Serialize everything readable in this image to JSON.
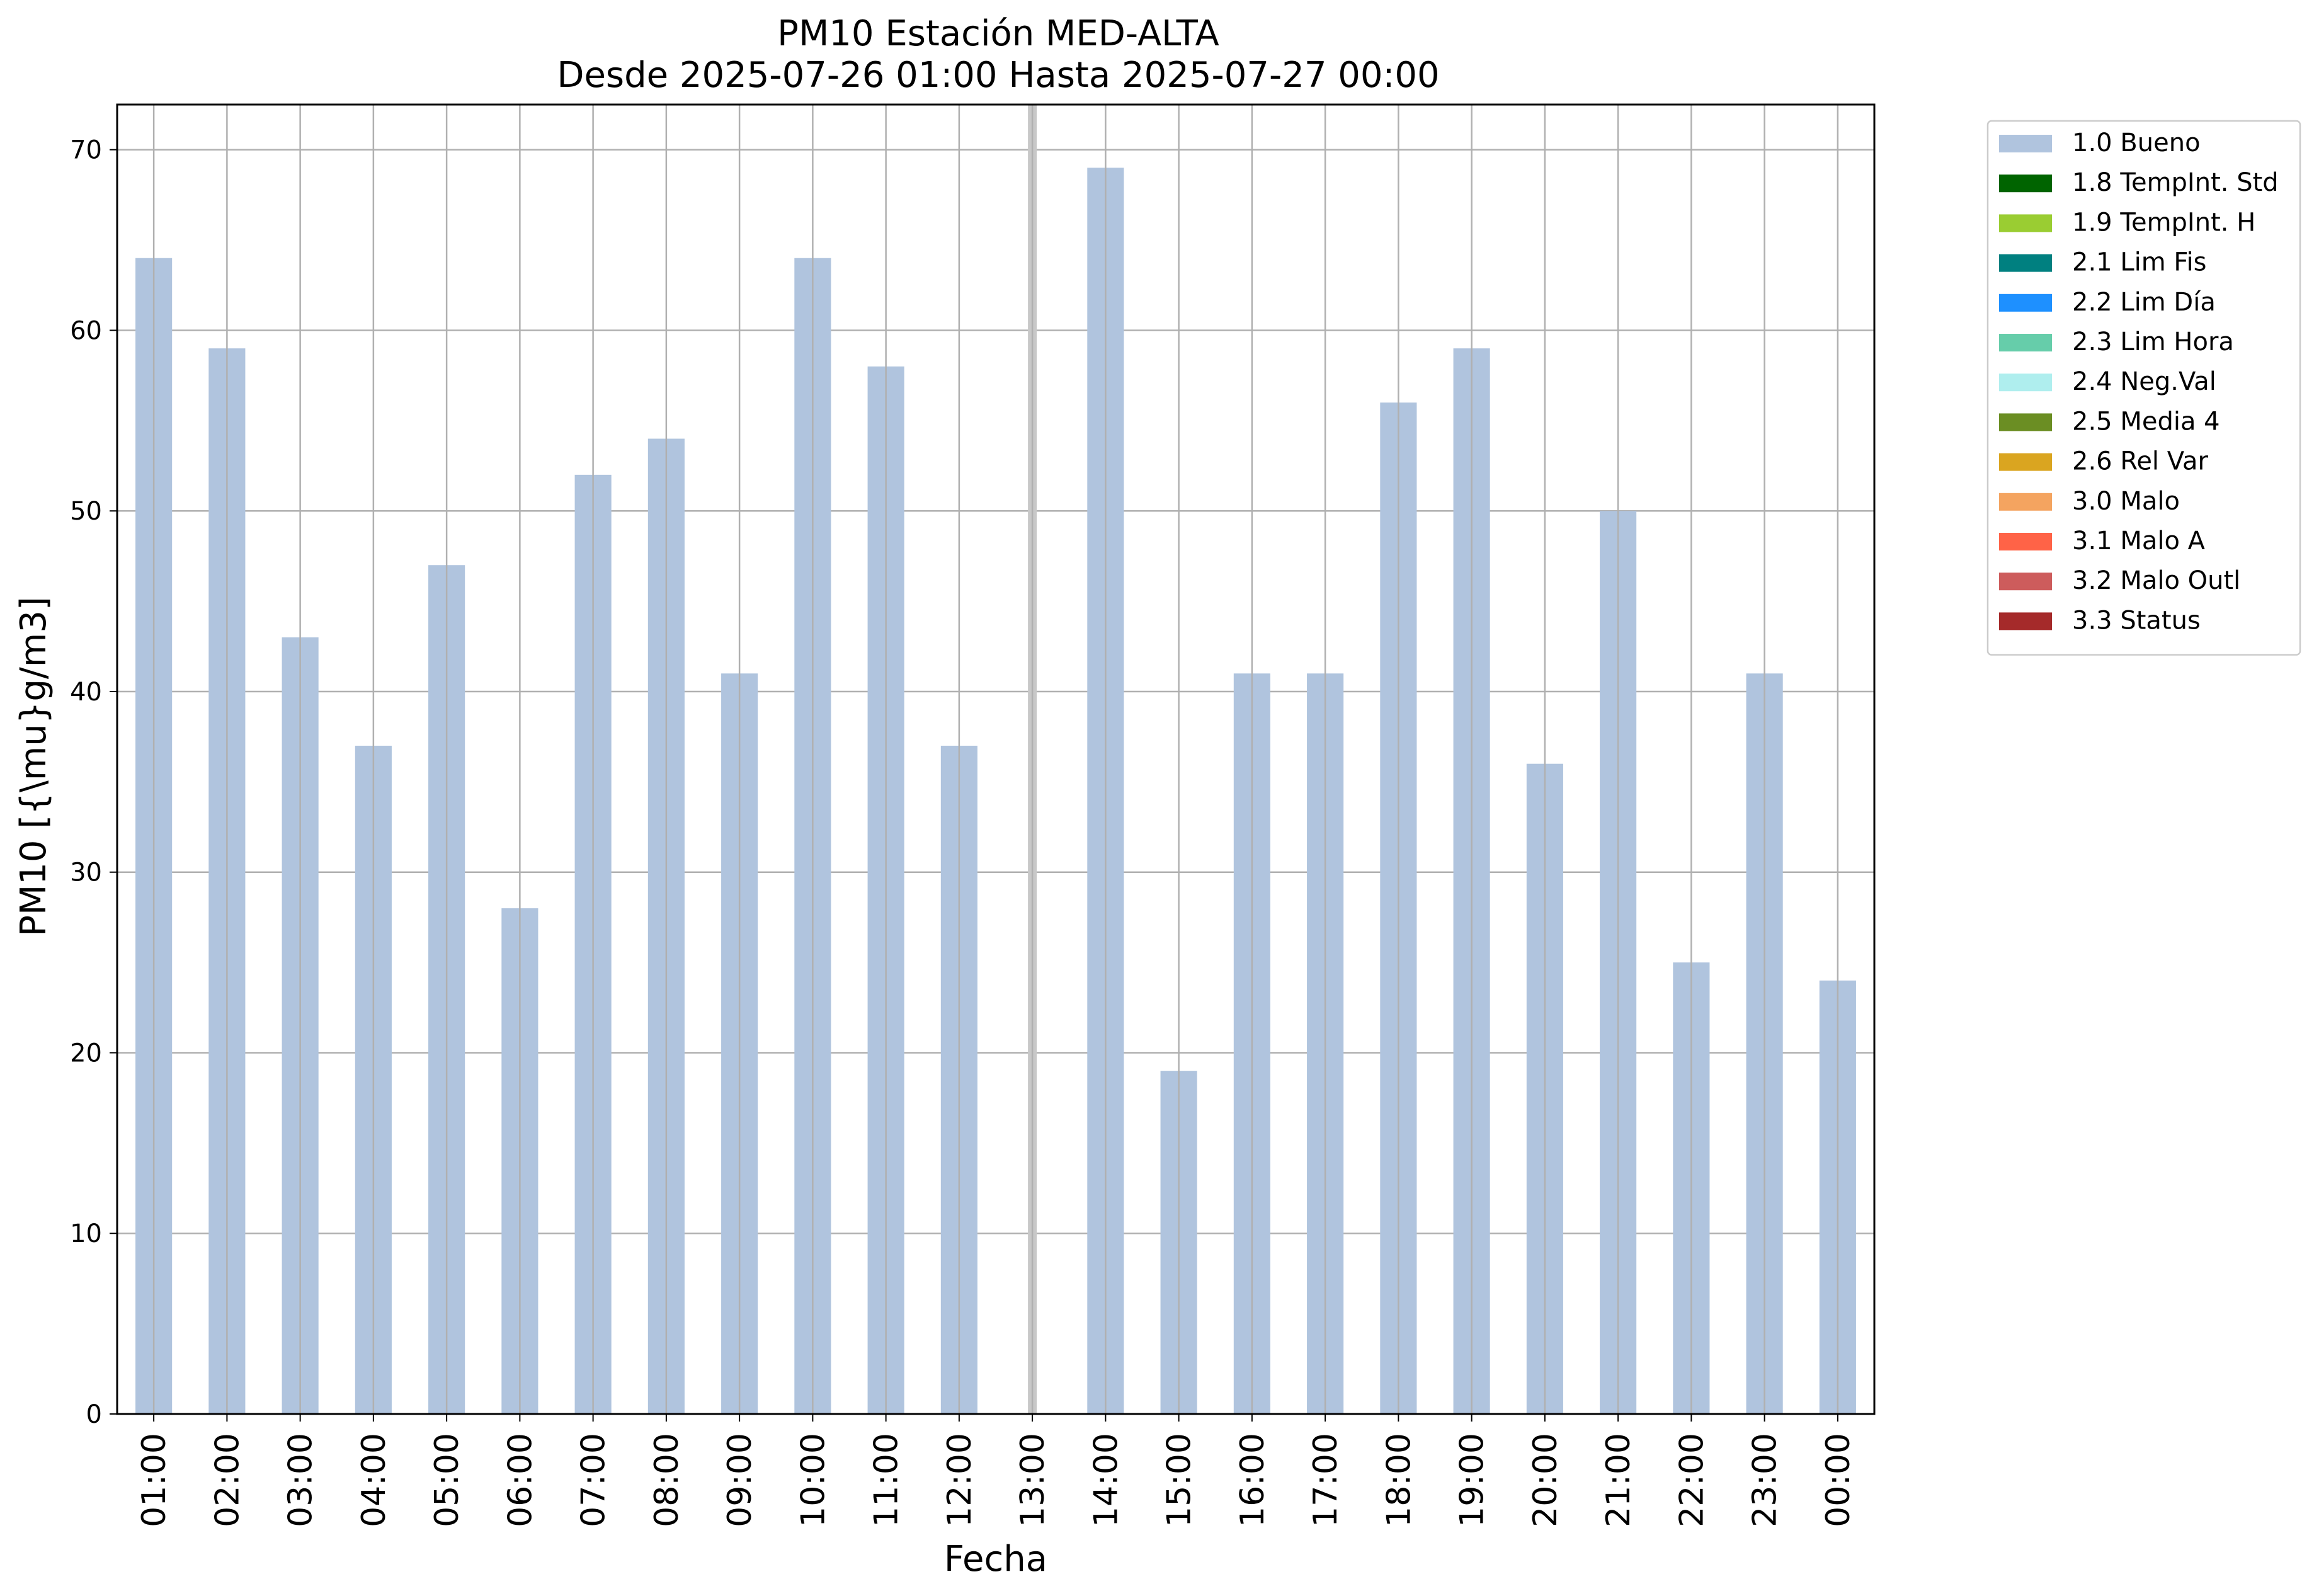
{
  "chart_data": {
    "type": "bar",
    "title": "PM10 Estación MED-ALTA",
    "subtitle": "Desde 2025-07-26 01:00 Hasta 2025-07-27 00:00",
    "xlabel": "Fecha",
    "ylabel": "PM10 [{\\mu}g/m3]",
    "ylim": [
      0,
      72.5
    ],
    "yticks": [
      0,
      10,
      20,
      30,
      40,
      50,
      60,
      70
    ],
    "grid": true,
    "legend_position": "outside-top-right",
    "categories": [
      "01:00",
      "02:00",
      "03:00",
      "04:00",
      "05:00",
      "06:00",
      "07:00",
      "08:00",
      "09:00",
      "10:00",
      "11:00",
      "12:00",
      "13:00",
      "14:00",
      "15:00",
      "16:00",
      "17:00",
      "18:00",
      "19:00",
      "20:00",
      "21:00",
      "22:00",
      "23:00",
      "00:00"
    ],
    "series": [
      {
        "name": "1.0 Bueno",
        "color": "#b0c4de",
        "values": [
          64,
          59,
          43,
          37,
          47,
          28,
          52,
          54,
          41,
          64,
          58,
          37,
          null,
          69,
          19,
          41,
          41,
          56,
          59,
          36,
          50,
          25,
          41,
          24
        ]
      }
    ],
    "missing_marker": {
      "category": "13:00",
      "color": "#c8c8c8"
    },
    "legend": [
      {
        "label": "1.0 Bueno",
        "color": "#b0c4de"
      },
      {
        "label": "1.8 TempInt. Std",
        "color": "#006400"
      },
      {
        "label": "1.9 TempInt. H",
        "color": "#9acd32"
      },
      {
        "label": "2.1 Lim Fis",
        "color": "#008080"
      },
      {
        "label": "2.2 Lim Día",
        "color": "#1e90ff"
      },
      {
        "label": "2.3 Lim Hora",
        "color": "#66cdaa"
      },
      {
        "label": "2.4 Neg.Val",
        "color": "#afeeee"
      },
      {
        "label": "2.5 Media 4",
        "color": "#6b8e23"
      },
      {
        "label": "2.6 Rel Var",
        "color": "#daa520"
      },
      {
        "label": "3.0 Malo",
        "color": "#f4a460"
      },
      {
        "label": "3.1 Malo A",
        "color": "#ff6347"
      },
      {
        "label": "3.2 Malo Outl",
        "color": "#cd5c5c"
      },
      {
        "label": "3.3 Status",
        "color": "#a52a2a"
      }
    ]
  }
}
